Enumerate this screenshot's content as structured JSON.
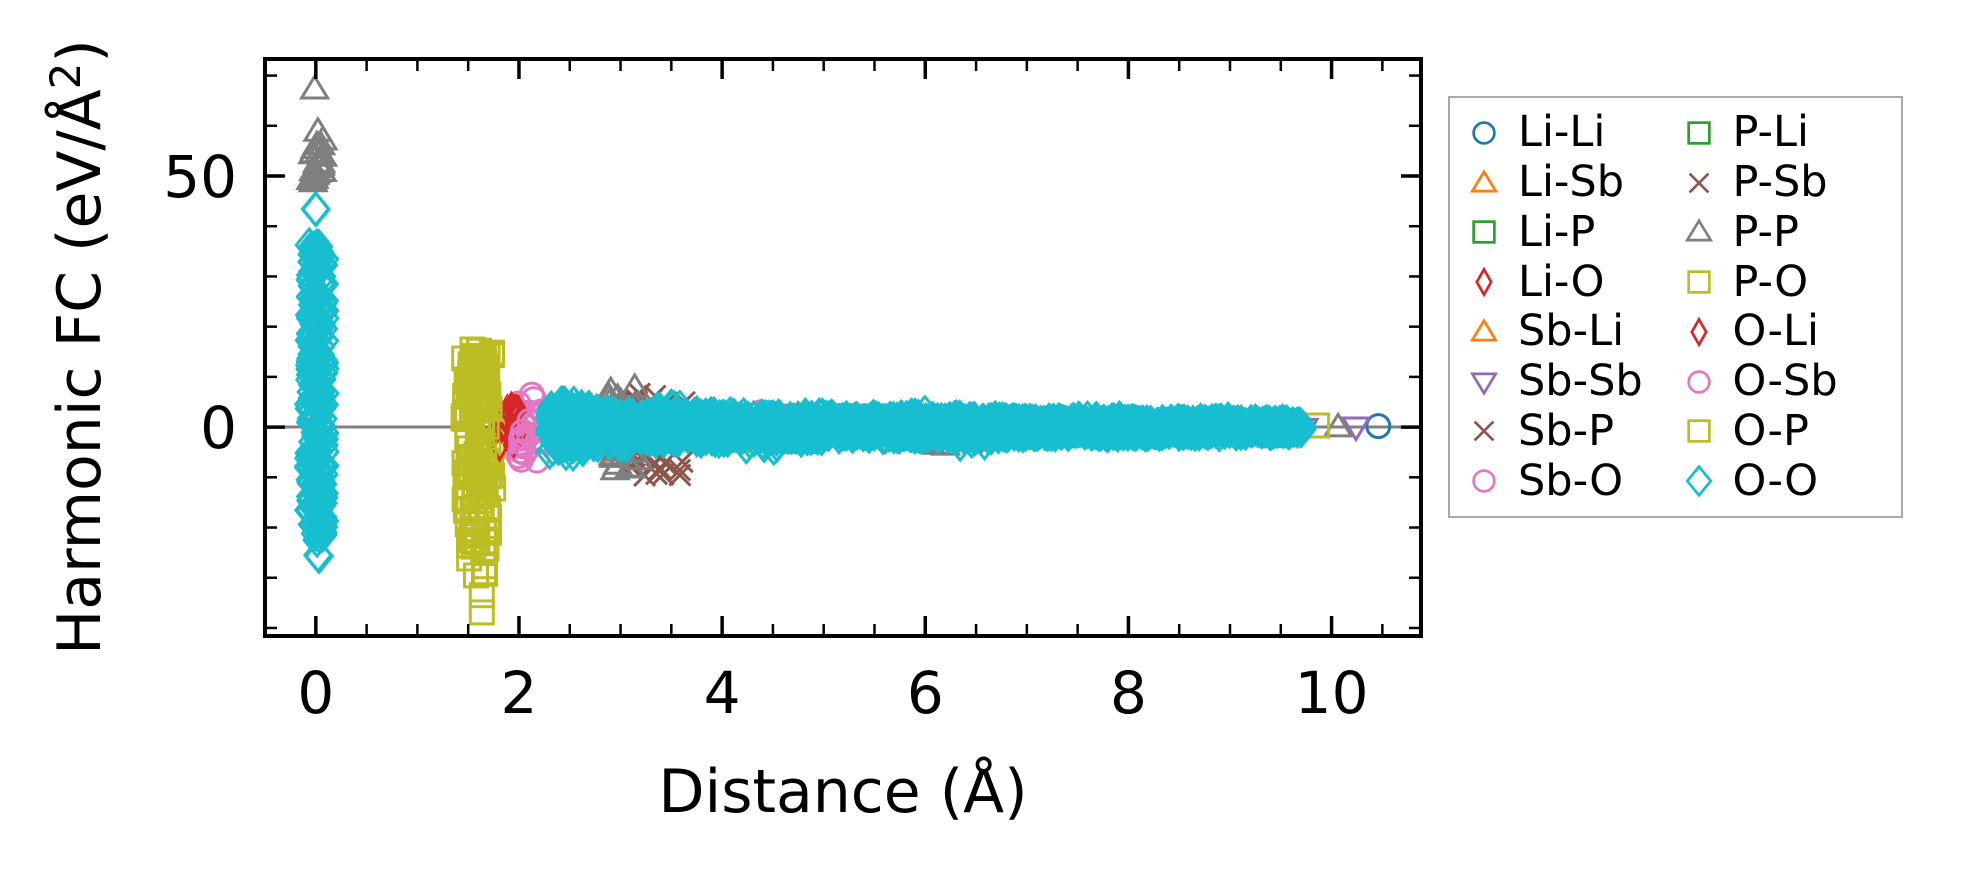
{
  "figure": {
    "xlabel": "Distance (Å)",
    "ylabel": {
      "pre": "Harmonic FC (eV/Å",
      "sup": "2",
      "post": ")"
    }
  },
  "chart_data": {
    "type": "scatter",
    "title": "",
    "xlabel": "Distance (Å)",
    "ylabel": "Harmonic FC (eV/Å^2)",
    "xlim": [
      -0.52,
      10.9
    ],
    "ylim": [
      -42.0,
      73.7
    ],
    "x_ticks_major": [
      0,
      2,
      4,
      6,
      8,
      10
    ],
    "x_tick_labels": [
      "0",
      "2",
      "4",
      "6",
      "8",
      "10"
    ],
    "x_tick_minor_step": 0.5,
    "y_ticks_major": [
      0,
      50
    ],
    "y_tick_labels": [
      "0",
      "50"
    ],
    "y_tick_minor_step": 10,
    "grid": false,
    "zero_line": {
      "y": 0,
      "color": "#808080"
    },
    "frame_color": "#000000",
    "legend": {
      "position": "outside-right",
      "columns": 2,
      "border_color": "#a9a9a9",
      "entries_order_column_major": [
        "Li-Li",
        "Li-Sb",
        "Li-P",
        "Li-O",
        "Sb-Li",
        "Sb-Sb",
        "Sb-P",
        "Sb-O",
        "P-Li",
        "P-Sb",
        "P-P",
        "P-O",
        "O-Li",
        "O-Sb",
        "O-P",
        "O-O"
      ]
    },
    "series": [
      {
        "name": "Li-Li",
        "marker": "circle",
        "color": "#1f77b4",
        "clusters": [
          {
            "x": [
              10.38,
              10.48
            ],
            "y": [
              -0.3,
              0.3
            ],
            "n": 1
          },
          {
            "x": [
              4.25,
              4.45
            ],
            "y": [
              -0.8,
              0.8
            ],
            "n": 2
          }
        ]
      },
      {
        "name": "Li-Sb",
        "marker": "triangle-up",
        "color": "#ff7f0e",
        "clusters": [
          {
            "x": [
              3.15,
              3.55
            ],
            "y": [
              -1.2,
              1.2
            ],
            "n": 4
          }
        ]
      },
      {
        "name": "Li-P",
        "marker": "square",
        "color": "#2ca02c",
        "clusters": [
          {
            "x": [
              2.6,
              3.0
            ],
            "y": [
              -1.2,
              1.2
            ],
            "n": 4
          }
        ]
      },
      {
        "name": "Li-O",
        "marker": "thin-diamond",
        "color": "#d62728",
        "clusters": [
          {
            "x": [
              1.78,
              2.0
            ],
            "y": [
              -4.0,
              4.0
            ],
            "n": 12
          },
          {
            "x": [
              8.75,
              8.95
            ],
            "y": [
              -1.4,
              1.4
            ],
            "n": 3
          }
        ]
      },
      {
        "name": "Sb-Li",
        "marker": "triangle-up",
        "color": "#ff7f0e",
        "clusters": [
          {
            "x": [
              3.3,
              3.7
            ],
            "y": [
              -1.0,
              1.0
            ],
            "n": 3
          }
        ]
      },
      {
        "name": "Sb-Sb",
        "marker": "triangle-down",
        "color": "#9467bd",
        "clusters": [
          {
            "x": [
              4.7,
              5.0
            ],
            "y": [
              1.2,
              2.3
            ],
            "n": 3
          },
          {
            "x": [
              4.75,
              4.9
            ],
            "y": [
              -3.7,
              -3.0
            ],
            "n": 1
          },
          {
            "x": [
              5.55,
              5.75
            ],
            "y": [
              0.8,
              1.6
            ],
            "n": 2
          },
          {
            "x": [
              6.45,
              6.65
            ],
            "y": [
              -2.8,
              -1.8
            ],
            "n": 2
          },
          {
            "x": [
              7.25,
              7.45
            ],
            "y": [
              -1.9,
              -1.0
            ],
            "n": 1
          },
          {
            "x": [
              9.7,
              9.8
            ],
            "y": [
              -0.5,
              0.5
            ],
            "n": 1
          },
          {
            "x": [
              10.22,
              10.32
            ],
            "y": [
              -0.35,
              0.35
            ],
            "n": 1
          }
        ]
      },
      {
        "name": "Sb-P",
        "marker": "x",
        "color": "#8c564b",
        "clusters": [
          {
            "x": [
              3.08,
              3.65
            ],
            "y": [
              -10.0,
              7.5
            ],
            "n": 26
          },
          {
            "x": [
              3.7,
              4.4
            ],
            "y": [
              -2.0,
              2.0
            ],
            "n": 8
          }
        ]
      },
      {
        "name": "Sb-O",
        "marker": "circle",
        "color": "#e377c2",
        "clusters": [
          {
            "x": [
              1.98,
              2.35
            ],
            "y": [
              -8.5,
              6.5
            ],
            "n": 18
          },
          {
            "x": [
              4.35,
              4.75
            ],
            "y": [
              1.8,
              3.1
            ],
            "n": 4
          },
          {
            "x": [
              6.2,
              6.5
            ],
            "y": [
              0.8,
              1.8
            ],
            "n": 2
          },
          {
            "x": [
              5.5,
              9.3
            ],
            "y": [
              -1.2,
              1.2
            ],
            "n": 8
          }
        ]
      },
      {
        "name": "P-Li",
        "marker": "square",
        "color": "#2ca02c",
        "clusters": [
          {
            "x": [
              2.7,
              3.1
            ],
            "y": [
              -1.0,
              1.0
            ],
            "n": 3
          }
        ]
      },
      {
        "name": "P-Sb",
        "marker": "x",
        "color": "#8c564b",
        "clusters": [
          {
            "x": [
              3.1,
              3.6
            ],
            "y": [
              -9.5,
              7.0
            ],
            "n": 14
          },
          {
            "x": [
              4.4,
              5.9
            ],
            "y": [
              -1.6,
              1.6
            ],
            "n": 6
          }
        ]
      },
      {
        "name": "P-P",
        "marker": "triangle-up",
        "color": "#7f7f7f",
        "clusters": [
          {
            "x": [
              -0.03,
              0.05
            ],
            "y": [
              67.2,
              67.4
            ],
            "n": 1
          },
          {
            "x": [
              -0.05,
              0.07
            ],
            "y": [
              48.5,
              59.0
            ],
            "n": 22
          },
          {
            "x": [
              2.88,
              3.18
            ],
            "y": [
              -9.0,
              8.0
            ],
            "n": 40
          },
          {
            "x": [
              4.5,
              4.8
            ],
            "y": [
              -4.0,
              -2.4
            ],
            "n": 5
          },
          {
            "x": [
              4.55,
              4.75
            ],
            "y": [
              1.4,
              2.4
            ],
            "n": 3
          },
          {
            "x": [
              5.9,
              6.25
            ],
            "y": [
              -3.8,
              -2.2
            ],
            "n": 6
          },
          {
            "x": [
              6.4,
              6.6
            ],
            "y": [
              -3.1,
              -2.1
            ],
            "n": 2
          },
          {
            "x": [
              7.3,
              7.6
            ],
            "y": [
              -2.3,
              -1.4
            ],
            "n": 2
          },
          {
            "x": [
              8.95,
              9.1
            ],
            "y": [
              -1.9,
              -1.2
            ],
            "n": 2
          },
          {
            "x": [
              10.0,
              10.12
            ],
            "y": [
              -0.4,
              0.4
            ],
            "n": 1
          }
        ]
      },
      {
        "name": "P-O",
        "marker": "square",
        "color": "#bcbd22",
        "clusters": [
          {
            "x": [
              1.45,
              1.75
            ],
            "y": [
              -24.0,
              15.5
            ],
            "n": 110
          },
          {
            "x": [
              1.5,
              1.68
            ],
            "y": [
              -30.0,
              -24.0
            ],
            "n": 7
          },
          {
            "x": [
              1.52,
              1.64
            ],
            "y": [
              -34.0,
              -32.0
            ],
            "n": 1
          },
          {
            "x": [
              1.52,
              1.64
            ],
            "y": [
              -38.0,
              -36.0
            ],
            "n": 1
          },
          {
            "x": [
              3.35,
              4.15
            ],
            "y": [
              0.8,
              2.6
            ],
            "n": 10
          },
          {
            "x": [
              3.5,
              4.2
            ],
            "y": [
              -2.6,
              -1.2
            ],
            "n": 5
          },
          {
            "x": [
              5.15,
              5.55
            ],
            "y": [
              1.0,
              2.5
            ],
            "n": 7
          },
          {
            "x": [
              6.6,
              6.95
            ],
            "y": [
              1.0,
              1.9
            ],
            "n": 3
          },
          {
            "x": [
              4.2,
              9.6
            ],
            "y": [
              -1.5,
              1.5
            ],
            "n": 40,
            "dist": "t"
          },
          {
            "x": [
              9.8,
              9.92
            ],
            "y": [
              -0.45,
              0.45
            ],
            "n": 1
          }
        ]
      },
      {
        "name": "O-Li",
        "marker": "thin-diamond",
        "color": "#d62728",
        "clusters": [
          {
            "x": [
              1.8,
              2.02
            ],
            "y": [
              -4.0,
              4.0
            ],
            "n": 10
          },
          {
            "x": [
              4.3,
              4.5
            ],
            "y": [
              -1.0,
              1.0
            ],
            "n": 2
          }
        ]
      },
      {
        "name": "O-Sb",
        "marker": "circle",
        "color": "#e377c2",
        "clusters": [
          {
            "x": [
              2.0,
              2.3
            ],
            "y": [
              -7.5,
              6.0
            ],
            "n": 10
          },
          {
            "x": [
              8.85,
              9.25
            ],
            "y": [
              -1.2,
              1.2
            ],
            "n": 4
          }
        ]
      },
      {
        "name": "O-P",
        "marker": "square",
        "color": "#bcbd22",
        "clusters": [
          {
            "x": [
              1.48,
              1.72
            ],
            "y": [
              -22.0,
              14.0
            ],
            "n": 40
          },
          {
            "x": [
              3.4,
              4.1
            ],
            "y": [
              0.9,
              2.4
            ],
            "n": 5
          },
          {
            "x": [
              5.2,
              5.6
            ],
            "y": [
              1.1,
              2.4
            ],
            "n": 4
          }
        ]
      },
      {
        "name": "O-O",
        "marker": "diamond",
        "color": "#17becf",
        "clusters": [
          {
            "x": [
              -0.04,
              0.06
            ],
            "y": [
              43.2,
              44.0
            ],
            "n": 2
          },
          {
            "x": [
              -0.07,
              0.09
            ],
            "y": [
              23.0,
              36.5
            ],
            "n": 45
          },
          {
            "x": [
              -0.07,
              0.09
            ],
            "y": [
              -22.5,
              23.0
            ],
            "n": 170
          },
          {
            "x": [
              -0.01,
              0.05
            ],
            "y": [
              -26.5,
              -25.2
            ],
            "n": 2
          },
          {
            "x": [
              2.3,
              2.55
            ],
            "y": [
              -5.5,
              5.5
            ],
            "n": 150,
            "dist": "t"
          },
          {
            "x": [
              2.55,
              2.8
            ],
            "y": [
              -4.8,
              4.8
            ],
            "n": 110,
            "dist": "t"
          },
          {
            "x": [
              2.8,
              3.1
            ],
            "y": [
              -3.8,
              3.8
            ],
            "n": 90,
            "dist": "t"
          },
          {
            "x": [
              3.1,
              4.0
            ],
            "y": [
              -3.2,
              3.2
            ],
            "n": 400,
            "dist": "t"
          },
          {
            "x": [
              4.0,
              5.0
            ],
            "y": [
              -2.7,
              2.7
            ],
            "n": 400,
            "dist": "t"
          },
          {
            "x": [
              5.0,
              6.0
            ],
            "y": [
              -2.3,
              2.3
            ],
            "n": 400,
            "dist": "t"
          },
          {
            "x": [
              6.0,
              7.0
            ],
            "y": [
              -2.0,
              2.0
            ],
            "n": 400,
            "dist": "t"
          },
          {
            "x": [
              7.0,
              8.0
            ],
            "y": [
              -1.8,
              1.8
            ],
            "n": 400,
            "dist": "t"
          },
          {
            "x": [
              8.0,
              9.0
            ],
            "y": [
              -1.6,
              1.6
            ],
            "n": 400,
            "dist": "t"
          },
          {
            "x": [
              9.0,
              9.6
            ],
            "y": [
              -1.35,
              1.35
            ],
            "n": 240,
            "dist": "t"
          },
          {
            "x": [
              9.6,
              9.72
            ],
            "y": [
              -0.9,
              0.9
            ],
            "n": 25,
            "dist": "t"
          },
          {
            "x": [
              4.2,
              4.6
            ],
            "y": [
              -4.4,
              -2.6
            ],
            "n": 7
          },
          {
            "x": [
              6.3,
              6.8
            ],
            "y": [
              -3.4,
              -2.1
            ],
            "n": 5
          },
          {
            "x": [
              3.3,
              3.6
            ],
            "y": [
              2.8,
              4.2
            ],
            "n": 5
          },
          {
            "x": [
              5.8,
              6.0
            ],
            "y": [
              2.0,
              3.0
            ],
            "n": 3
          }
        ]
      }
    ]
  }
}
